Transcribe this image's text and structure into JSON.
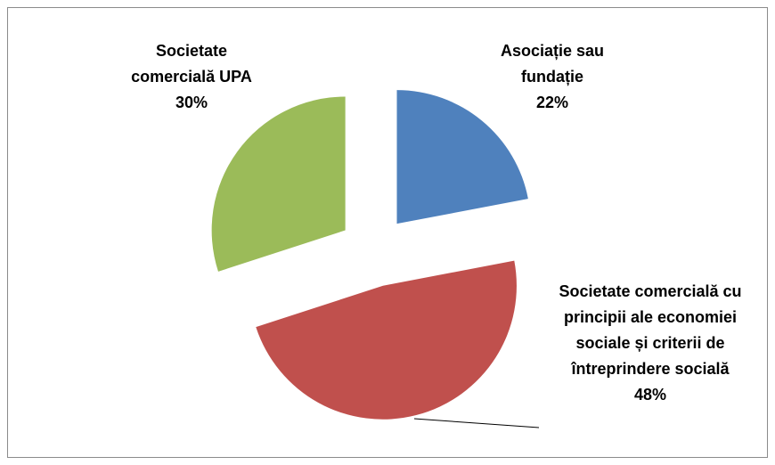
{
  "chart_data": {
    "type": "pie",
    "categories": [
      "Asociație sau fundație",
      "Societate comercială cu principii ale economiei sociale și criterii de întreprindere socială",
      "Societate comercială UPA"
    ],
    "values": [
      22,
      48,
      30
    ],
    "value_labels": [
      "22%",
      "48%",
      "30%"
    ],
    "colors": [
      "#4f81bd",
      "#c0504d",
      "#9bbb59"
    ],
    "exploded": true
  }
}
